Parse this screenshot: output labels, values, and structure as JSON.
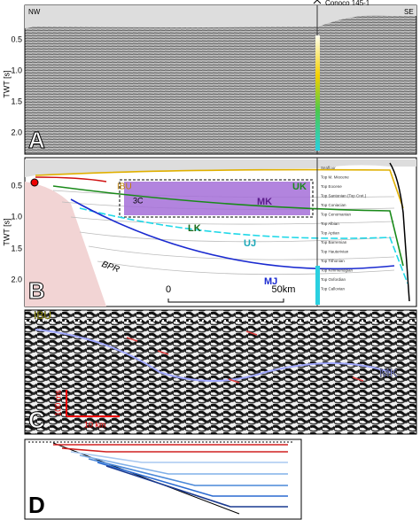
{
  "panel_a": {
    "letter": "A",
    "nw": "NW",
    "se": "SE",
    "well": "Conoco 145-1",
    "axis_label": "TWT [s]",
    "ticks": [
      "0.5",
      "1.0",
      "1.5",
      "2.0"
    ]
  },
  "panel_b": {
    "letter": "B",
    "axis_label": "TWT [s]",
    "ticks": [
      "0.5",
      "1.0",
      "1.5",
      "2.0"
    ],
    "labels": {
      "ibu": "IBU",
      "uk": "UK",
      "mk": "MK",
      "lk": "LK",
      "uj": "UJ",
      "mj": "MJ",
      "bpr": "BPR",
      "box": "3C"
    },
    "scale": {
      "start": "0",
      "end": "50km"
    },
    "horizons": [
      "Seafloor",
      "Top M. Miocene",
      "Top Eocene",
      "Top Santonian (Top Cret.)",
      "Top Coniacian",
      "Top Cenomanian",
      "Top Albian",
      "Top Aptian",
      "Top Barremian",
      "Top Hauterivian",
      "Top Tithonian",
      "Top Kimmeridgian",
      "Top Oxfordian",
      "Top Callovian"
    ]
  },
  "panel_c": {
    "letter": "C",
    "ibu": "IBU",
    "mk": "MK",
    "vertical_scale": "100 ms",
    "horizontal_scale": "10 km"
  },
  "panel_d": {
    "letter": "D"
  }
}
